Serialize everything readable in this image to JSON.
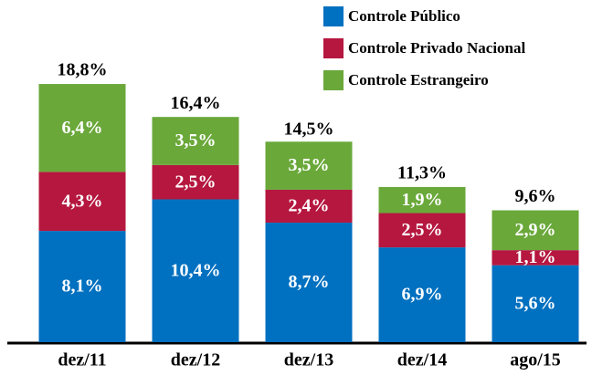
{
  "chart_data": {
    "type": "stacked-bar",
    "categories": [
      "dez/11",
      "dez/12",
      "dez/13",
      "dez/14",
      "ago/15"
    ],
    "series": [
      {
        "name": "Controle Público",
        "color": "#0070c0",
        "values": [
          8.1,
          10.4,
          8.7,
          6.9,
          5.6
        ],
        "value_labels": [
          "8,1%",
          "10,4%",
          "8,7%",
          "6,9%",
          "5,6%"
        ]
      },
      {
        "name": "Controle Privado Nacional",
        "color": "#b5173f",
        "values": [
          4.3,
          2.5,
          2.4,
          2.5,
          1.1
        ],
        "value_labels": [
          "4,3%",
          "2,5%",
          "2,4%",
          "2,5%",
          "1,1%"
        ]
      },
      {
        "name": "Controle Estrangeiro",
        "color": "#6aa83a",
        "values": [
          6.4,
          3.5,
          3.5,
          1.9,
          2.9
        ],
        "value_labels": [
          "6,4%",
          "3,5%",
          "3,5%",
          "1,9%",
          "2,9%"
        ]
      }
    ],
    "totals": [
      18.8,
      16.4,
      14.5,
      11.3,
      9.6
    ],
    "total_labels": [
      "18,8%",
      "16,4%",
      "14,5%",
      "11,3%",
      "9,6%"
    ]
  }
}
